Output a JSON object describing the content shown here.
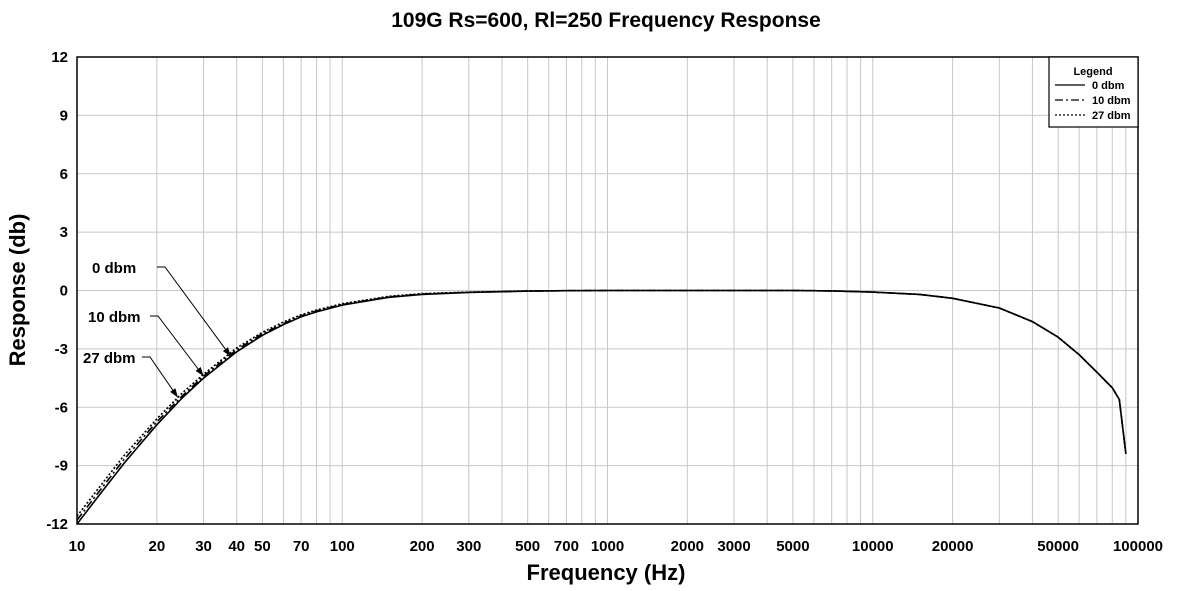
{
  "chart_data": {
    "type": "line",
    "title": "109G Rs=600, Rl=250 Frequency Response",
    "xlabel": "Frequency (Hz)",
    "ylabel": "Response (db)",
    "xscale": "log",
    "xlim": [
      10,
      100000
    ],
    "ylim": [
      -12,
      12
    ],
    "grid": true,
    "x_ticks": [
      10,
      20,
      30,
      40,
      50,
      70,
      100,
      200,
      300,
      500,
      700,
      1000,
      2000,
      3000,
      5000,
      10000,
      20000,
      50000,
      100000
    ],
    "x_tick_labels": [
      "10",
      "20",
      "30",
      "40",
      "50",
      "70",
      "100",
      "200",
      "300",
      "500",
      "700",
      "1000",
      "2000",
      "3000",
      "5000",
      "10000",
      "20000",
      "50000",
      "100000"
    ],
    "y_ticks": [
      12,
      9,
      6,
      3,
      0,
      -3,
      -6,
      -9,
      -12
    ],
    "y_tick_labels": [
      "12",
      "9",
      "6",
      "3",
      "0",
      "-3",
      "-6",
      "-9",
      "-12"
    ],
    "legend": {
      "title": "Legend",
      "position": "top-right",
      "entries": [
        {
          "label": "0 dbm",
          "style": "solid"
        },
        {
          "label": "10 dbm",
          "style": "dashdot"
        },
        {
          "label": "27 dbm",
          "style": "dotted"
        }
      ]
    },
    "annotations": [
      {
        "text": "0 dbm",
        "series": 0,
        "at_x": 38
      },
      {
        "text": "10 dbm",
        "series": 1,
        "at_x": 30
      },
      {
        "text": "27 dbm",
        "series": 2,
        "at_x": 24
      }
    ],
    "series": [
      {
        "name": "0 dbm",
        "style": "solid",
        "x": [
          10,
          12,
          15,
          20,
          25,
          30,
          40,
          50,
          60,
          70,
          80,
          100,
          150,
          200,
          300,
          500,
          700,
          1000,
          2000,
          3000,
          5000,
          7000,
          10000,
          15000,
          20000,
          30000,
          40000,
          50000,
          60000,
          70000,
          80000,
          85000,
          90000
        ],
        "y": [
          -12.0,
          -10.6,
          -8.9,
          -6.9,
          -5.5,
          -4.5,
          -3.15,
          -2.3,
          -1.75,
          -1.35,
          -1.1,
          -0.75,
          -0.35,
          -0.2,
          -0.1,
          -0.03,
          -0.01,
          0.0,
          0.0,
          0.0,
          0.0,
          -0.02,
          -0.08,
          -0.2,
          -0.4,
          -0.9,
          -1.6,
          -2.4,
          -3.3,
          -4.2,
          -5.0,
          -5.6,
          -8.4
        ]
      },
      {
        "name": "10 dbm",
        "style": "dashdot",
        "x": [
          10,
          12,
          15,
          20,
          25,
          30,
          40,
          50,
          60,
          70,
          80,
          100,
          150,
          200,
          300,
          500,
          700,
          1000,
          2000,
          3000,
          5000,
          7000,
          10000,
          15000,
          20000,
          30000,
          40000,
          50000,
          60000,
          70000,
          80000,
          85000,
          90000
        ],
        "y": [
          -11.8,
          -10.4,
          -8.7,
          -6.75,
          -5.4,
          -4.4,
          -3.05,
          -2.22,
          -1.7,
          -1.3,
          -1.05,
          -0.72,
          -0.33,
          -0.18,
          -0.09,
          -0.03,
          -0.01,
          0.0,
          0.0,
          0.0,
          0.0,
          -0.02,
          -0.08,
          -0.2,
          -0.4,
          -0.9,
          -1.6,
          -2.4,
          -3.3,
          -4.2,
          -5.0,
          -5.6,
          -8.4
        ]
      },
      {
        "name": "27 dbm",
        "style": "dotted",
        "x": [
          10,
          12,
          15,
          20,
          25,
          30,
          40,
          50,
          60,
          70,
          80,
          100,
          150,
          200,
          300,
          500,
          700,
          1000,
          2000,
          3000,
          5000,
          7000,
          10000,
          15000,
          20000,
          30000,
          40000,
          50000,
          60000,
          70000,
          80000,
          85000,
          90000
        ],
        "y": [
          -11.6,
          -10.2,
          -8.5,
          -6.6,
          -5.25,
          -4.3,
          -2.95,
          -2.15,
          -1.62,
          -1.25,
          -1.0,
          -0.68,
          -0.3,
          -0.16,
          -0.08,
          -0.02,
          -0.01,
          0.0,
          0.0,
          0.0,
          0.0,
          -0.02,
          -0.08,
          -0.2,
          -0.4,
          -0.9,
          -1.6,
          -2.4,
          -3.3,
          -4.2,
          -5.0,
          -5.6,
          -8.4
        ]
      }
    ]
  }
}
